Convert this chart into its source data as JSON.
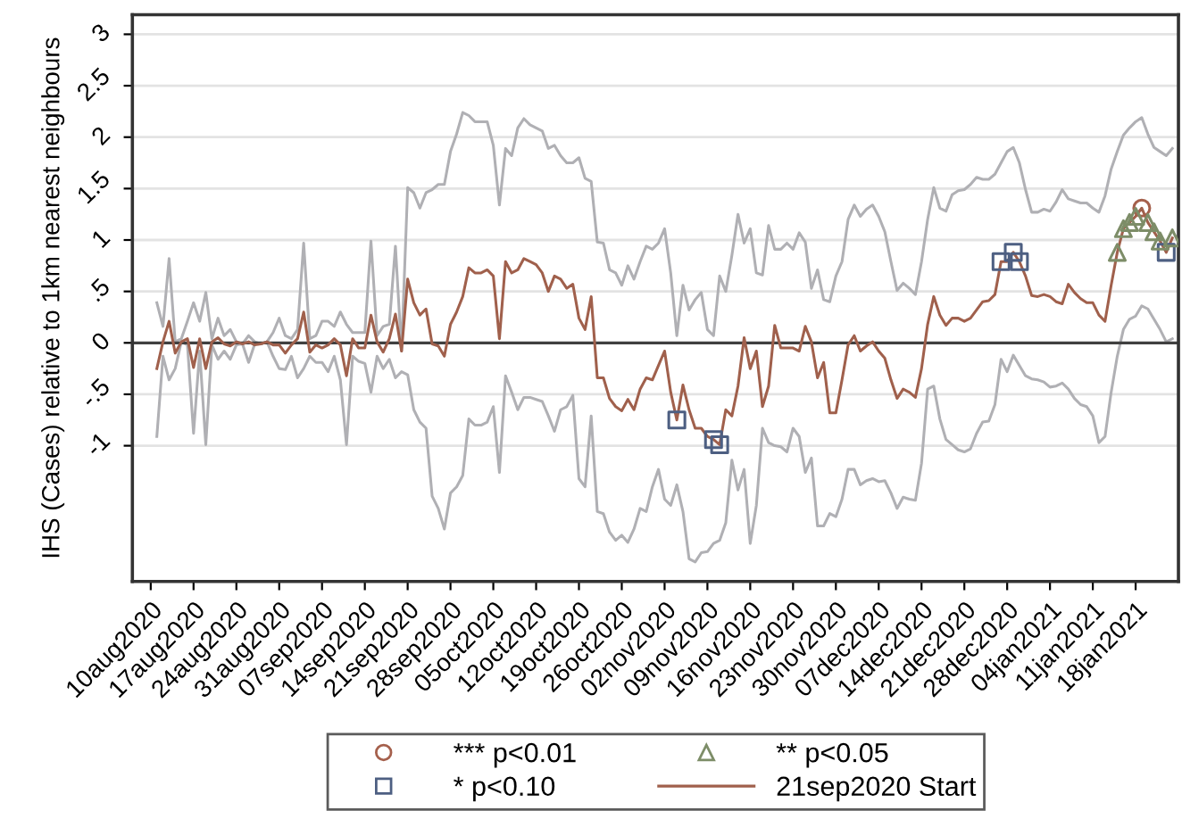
{
  "chart_data": {
    "type": "line",
    "ylabel": "IHS (Cases) relative to 1km nearest neighbours",
    "x": [
      "2020-08-11",
      "2020-08-12",
      "2020-08-13",
      "2020-08-14",
      "2020-08-15",
      "2020-08-16",
      "2020-08-17",
      "2020-08-18",
      "2020-08-19",
      "2020-08-20",
      "2020-08-21",
      "2020-08-22",
      "2020-08-23",
      "2020-08-24",
      "2020-08-25",
      "2020-08-26",
      "2020-08-27",
      "2020-08-28",
      "2020-08-29",
      "2020-08-30",
      "2020-08-31",
      "2020-09-01",
      "2020-09-02",
      "2020-09-03",
      "2020-09-04",
      "2020-09-05",
      "2020-09-06",
      "2020-09-07",
      "2020-09-08",
      "2020-09-09",
      "2020-09-10",
      "2020-09-11",
      "2020-09-12",
      "2020-09-13",
      "2020-09-14",
      "2020-09-15",
      "2020-09-16",
      "2020-09-17",
      "2020-09-18",
      "2020-09-19",
      "2020-09-20",
      "2020-09-21",
      "2020-09-22",
      "2020-09-23",
      "2020-09-24",
      "2020-09-25",
      "2020-09-26",
      "2020-09-27",
      "2020-09-28",
      "2020-09-29",
      "2020-09-30",
      "2020-10-01",
      "2020-10-02",
      "2020-10-03",
      "2020-10-04",
      "2020-10-05",
      "2020-10-06",
      "2020-10-07",
      "2020-10-08",
      "2020-10-09",
      "2020-10-10",
      "2020-10-11",
      "2020-10-12",
      "2020-10-13",
      "2020-10-14",
      "2020-10-15",
      "2020-10-16",
      "2020-10-17",
      "2020-10-18",
      "2020-10-19",
      "2020-10-20",
      "2020-10-21",
      "2020-10-22",
      "2020-10-23",
      "2020-10-24",
      "2020-10-25",
      "2020-10-26",
      "2020-10-27",
      "2020-10-28",
      "2020-10-29",
      "2020-10-30",
      "2020-10-31",
      "2020-11-01",
      "2020-11-02",
      "2020-11-03",
      "2020-11-04",
      "2020-11-05",
      "2020-11-06",
      "2020-11-07",
      "2020-11-08",
      "2020-11-09",
      "2020-11-10",
      "2020-11-11",
      "2020-11-12",
      "2020-11-13",
      "2020-11-14",
      "2020-11-15",
      "2020-11-16",
      "2020-11-17",
      "2020-11-18",
      "2020-11-19",
      "2020-11-20",
      "2020-11-21",
      "2020-11-22",
      "2020-11-23",
      "2020-11-24",
      "2020-11-25",
      "2020-11-26",
      "2020-11-27",
      "2020-11-28",
      "2020-11-29",
      "2020-11-30",
      "2020-12-01",
      "2020-12-02",
      "2020-12-03",
      "2020-12-04",
      "2020-12-05",
      "2020-12-06",
      "2020-12-07",
      "2020-12-08",
      "2020-12-09",
      "2020-12-10",
      "2020-12-11",
      "2020-12-12",
      "2020-12-13",
      "2020-12-14",
      "2020-12-15",
      "2020-12-16",
      "2020-12-17",
      "2020-12-18",
      "2020-12-19",
      "2020-12-20",
      "2020-12-21",
      "2020-12-22",
      "2020-12-23",
      "2020-12-24",
      "2020-12-25",
      "2020-12-26",
      "2020-12-27",
      "2020-12-28",
      "2020-12-29",
      "2020-12-30",
      "2020-12-31",
      "2021-01-01",
      "2021-01-02",
      "2021-01-03",
      "2021-01-04",
      "2021-01-05",
      "2021-01-06",
      "2021-01-07",
      "2021-01-08",
      "2021-01-09",
      "2021-01-10",
      "2021-01-11",
      "2021-01-12",
      "2021-01-13",
      "2021-01-14",
      "2021-01-15",
      "2021-01-16",
      "2021-01-17",
      "2021-01-18",
      "2021-01-19",
      "2021-01-20",
      "2021-01-21",
      "2021-01-22",
      "2021-01-23",
      "2021-01-24"
    ],
    "series": [
      {
        "name": "*** p<0.01",
        "type": "scatter",
        "marker": "circle",
        "color": "#a5604c",
        "x": [
          "2021-01-19"
        ],
        "values": [
          1.31
        ]
      },
      {
        "name": "* p<0.10",
        "type": "scatter",
        "marker": "square",
        "color": "#4d5f82",
        "x": [
          "2020-11-04",
          "2020-11-10",
          "2020-11-11",
          "2020-12-27",
          "2020-12-29",
          "2020-12-30",
          "2021-01-23"
        ],
        "values": [
          -0.75,
          -0.94,
          -0.99,
          0.79,
          0.88,
          0.79,
          0.88
        ]
      },
      {
        "name": "** p<0.05",
        "type": "scatter",
        "marker": "triangle",
        "color": "#7d8d68",
        "x": [
          "2021-01-15",
          "2021-01-16",
          "2021-01-17",
          "2021-01-18",
          "2021-01-20",
          "2021-01-21",
          "2021-01-22",
          "2021-01-24"
        ],
        "values": [
          0.88,
          1.11,
          1.17,
          1.23,
          1.17,
          1.08,
          0.99,
          1.02
        ]
      },
      {
        "name": "21sep2020 Start",
        "color": "#a0604c",
        "values": [
          -0.25,
          0.01,
          0.21,
          -0.1,
          0.01,
          0.04,
          -0.24,
          0.04,
          -0.25,
          0.01,
          0.05,
          -0.01,
          -0.03,
          0.01,
          -0.01,
          0.01,
          -0.02,
          -0.01,
          0.01,
          -0.02,
          -0.02,
          -0.1,
          -0.02,
          0.04,
          0.3,
          -0.09,
          -0.02,
          -0.05,
          -0.02,
          0.04,
          -0.02,
          -0.32,
          0.04,
          -0.05,
          -0.05,
          0.27,
          0.01,
          -0.09,
          0.04,
          0.28,
          -0.08,
          0.62,
          0.39,
          0.27,
          0.33,
          -0.01,
          -0.03,
          -0.13,
          0.18,
          0.3,
          0.45,
          0.73,
          0.68,
          0.68,
          0.71,
          0.65,
          0.04,
          0.79,
          0.68,
          0.71,
          0.82,
          0.79,
          0.76,
          0.68,
          0.5,
          0.65,
          0.62,
          0.53,
          0.57,
          0.24,
          0.13,
          0.45,
          -0.34,
          -0.34,
          -0.54,
          -0.62,
          -0.66,
          -0.55,
          -0.65,
          -0.45,
          -0.34,
          -0.36,
          -0.22,
          -0.08,
          -0.48,
          -0.75,
          -0.41,
          -0.65,
          -0.83,
          -0.83,
          -0.91,
          -0.94,
          -0.99,
          -0.65,
          -0.71,
          -0.42,
          0.05,
          -0.25,
          -0.08,
          -0.62,
          -0.42,
          0.17,
          -0.05,
          -0.05,
          -0.05,
          -0.08,
          0.16,
          0.01,
          -0.34,
          -0.19,
          -0.68,
          -0.68,
          -0.36,
          -0.02,
          0.07,
          -0.08,
          -0.03,
          0.01,
          -0.08,
          -0.15,
          -0.36,
          -0.54,
          -0.45,
          -0.48,
          -0.53,
          -0.25,
          0.18,
          0.45,
          0.27,
          0.17,
          0.24,
          0.24,
          0.21,
          0.24,
          0.32,
          0.4,
          0.41,
          0.47,
          0.79,
          0.79,
          0.88,
          0.79,
          0.65,
          0.46,
          0.45,
          0.47,
          0.45,
          0.4,
          0.38,
          0.57,
          0.49,
          0.43,
          0.39,
          0.39,
          0.27,
          0.21,
          0.56,
          0.88,
          1.11,
          1.17,
          1.23,
          1.31,
          1.17,
          1.08,
          0.99,
          0.88,
          1.02
        ]
      },
      {
        "color": "#b0b0b4",
        "values": [
          0.39,
          0.16,
          0.82,
          0.01,
          0.04,
          0.21,
          0.39,
          0.21,
          0.49,
          0.04,
          0.24,
          0.07,
          0.13,
          0.01,
          -0.01,
          0.07,
          0.01,
          -0.01,
          0.01,
          0.1,
          0.24,
          0.07,
          0.04,
          0.13,
          0.97,
          0.04,
          0.07,
          0.21,
          0.21,
          0.16,
          0.3,
          0.18,
          0.1,
          0.1,
          0.1,
          0.99,
          0.07,
          0.16,
          0.18,
          0.94,
          -0.08,
          1.51,
          1.46,
          1.31,
          1.46,
          1.49,
          1.54,
          1.54,
          1.86,
          2.03,
          2.24,
          2.21,
          2.15,
          2.15,
          2.15,
          1.92,
          1.34,
          1.89,
          1.82,
          2.09,
          2.18,
          2.12,
          2.09,
          2.06,
          1.89,
          1.92,
          1.82,
          1.75,
          1.75,
          1.8,
          1.6,
          1.57,
          0.98,
          0.97,
          0.71,
          0.68,
          0.56,
          0.75,
          0.62,
          0.79,
          0.94,
          0.91,
          0.97,
          1.11,
          0.68,
          0.07,
          0.56,
          0.32,
          0.42,
          0.49,
          0.13,
          0.07,
          0.65,
          0.5,
          0.85,
          1.25,
          0.97,
          1.11,
          0.68,
          0.66,
          1.14,
          0.91,
          0.91,
          0.97,
          0.91,
          1.07,
          0.98,
          0.53,
          0.71,
          0.42,
          0.4,
          0.65,
          0.79,
          1.2,
          1.34,
          1.23,
          1.3,
          1.34,
          1.23,
          1.08,
          0.79,
          0.51,
          0.58,
          0.53,
          0.47,
          0.79,
          1.2,
          1.51,
          1.31,
          1.28,
          1.44,
          1.48,
          1.49,
          1.54,
          1.61,
          1.59,
          1.59,
          1.64,
          1.75,
          1.86,
          1.9,
          1.75,
          1.49,
          1.27,
          1.27,
          1.3,
          1.28,
          1.37,
          1.49,
          1.4,
          1.38,
          1.36,
          1.36,
          1.31,
          1.27,
          1.43,
          1.69,
          1.86,
          2.02,
          2.09,
          2.15,
          2.19,
          2.03,
          1.9,
          1.86,
          1.82,
          1.89
        ]
      },
      {
        "color": "#b0b0b4",
        "values": [
          -0.91,
          -0.13,
          -0.36,
          -0.25,
          0.01,
          -0.02,
          -0.88,
          -0.08,
          -0.99,
          -0.02,
          -0.16,
          -0.08,
          -0.16,
          -0.02,
          -0.01,
          -0.19,
          -0.01,
          -0.01,
          0.01,
          -0.13,
          -0.25,
          -0.26,
          -0.13,
          -0.34,
          -0.25,
          -0.13,
          -0.19,
          -0.19,
          -0.28,
          -0.13,
          -0.36,
          -0.99,
          -0.13,
          -0.18,
          -0.2,
          -0.48,
          -0.13,
          -0.25,
          -0.16,
          -0.34,
          -0.28,
          -0.31,
          -0.65,
          -0.77,
          -0.83,
          -1.49,
          -1.61,
          -1.81,
          -1.46,
          -1.4,
          -1.29,
          -0.74,
          -0.8,
          -0.8,
          -0.77,
          -0.62,
          -1.26,
          -0.32,
          -0.48,
          -0.65,
          -0.53,
          -0.53,
          -0.55,
          -0.57,
          -0.71,
          -0.86,
          -0.65,
          -0.62,
          -0.51,
          -1.32,
          -1.4,
          -0.71,
          -1.64,
          -1.66,
          -1.84,
          -1.92,
          -1.87,
          -1.94,
          -1.81,
          -1.61,
          -1.64,
          -1.4,
          -1.23,
          -1.52,
          -1.58,
          -1.38,
          -1.64,
          -2.1,
          -2.13,
          -2.04,
          -2.03,
          -1.95,
          -1.92,
          -1.75,
          -1.14,
          -1.43,
          -1.23,
          -1.95,
          -1.58,
          -0.83,
          -0.97,
          -1.0,
          -1.01,
          -1.06,
          -0.83,
          -0.91,
          -1.26,
          -1.12,
          -1.78,
          -1.78,
          -1.66,
          -1.69,
          -1.52,
          -1.23,
          -1.23,
          -1.38,
          -1.34,
          -1.32,
          -1.35,
          -1.34,
          -1.46,
          -1.61,
          -1.5,
          -1.52,
          -1.53,
          -1.17,
          -0.45,
          -0.42,
          -0.74,
          -0.94,
          -0.99,
          -1.04,
          -1.06,
          -1.03,
          -0.88,
          -0.77,
          -0.76,
          -0.6,
          -0.16,
          -0.28,
          -0.12,
          -0.22,
          -0.32,
          -0.35,
          -0.36,
          -0.38,
          -0.43,
          -0.42,
          -0.39,
          -0.45,
          -0.54,
          -0.6,
          -0.62,
          -0.71,
          -0.97,
          -0.91,
          -0.48,
          -0.13,
          0.13,
          0.23,
          0.26,
          0.36,
          0.33,
          0.23,
          0.13,
          0.01,
          0.04
        ]
      }
    ],
    "ref_lines": [
      {
        "axis": "y",
        "value": 0,
        "color": "#404040"
      }
    ],
    "xlim": [
      "2020-08-07",
      "2021-01-25"
    ],
    "xticks": [
      {
        "value": "2020-08-10",
        "label": "10aug2020"
      },
      {
        "value": "2020-08-17",
        "label": "17aug2020"
      },
      {
        "value": "2020-08-24",
        "label": "24aug2020"
      },
      {
        "value": "2020-08-31",
        "label": "31aug2020"
      },
      {
        "value": "2020-09-07",
        "label": "07sep2020"
      },
      {
        "value": "2020-09-14",
        "label": "14sep2020"
      },
      {
        "value": "2020-09-21",
        "label": "21sep2020"
      },
      {
        "value": "2020-09-28",
        "label": "28sep2020"
      },
      {
        "value": "2020-10-05",
        "label": "05oct2020"
      },
      {
        "value": "2020-10-12",
        "label": "12oct2020"
      },
      {
        "value": "2020-10-19",
        "label": "19oct2020"
      },
      {
        "value": "2020-10-26",
        "label": "26oct2020"
      },
      {
        "value": "2020-11-02",
        "label": "02nov2020"
      },
      {
        "value": "2020-11-09",
        "label": "09nov2020"
      },
      {
        "value": "2020-11-16",
        "label": "16nov2020"
      },
      {
        "value": "2020-11-23",
        "label": "23nov2020"
      },
      {
        "value": "2020-11-30",
        "label": "30nov2020"
      },
      {
        "value": "2020-12-07",
        "label": "07dec2020"
      },
      {
        "value": "2020-12-14",
        "label": "14dec2020"
      },
      {
        "value": "2020-12-21",
        "label": "21dec2020"
      },
      {
        "value": "2020-12-28",
        "label": "28dec2020"
      },
      {
        "value": "2021-01-04",
        "label": "04jan2021"
      },
      {
        "value": "2021-01-11",
        "label": "11jan2021"
      },
      {
        "value": "2021-01-18",
        "label": "18jan2021"
      }
    ],
    "ylim": [
      -2.32,
      3.19
    ],
    "yticks": [
      {
        "value": -1,
        "label": "-1"
      },
      {
        "value": -0.5,
        "label": "-.5"
      },
      0,
      {
        "value": 0.5,
        "label": ".5"
      },
      1,
      1.5,
      2,
      2.5,
      3
    ],
    "grid": "y",
    "legend": "bottom"
  }
}
